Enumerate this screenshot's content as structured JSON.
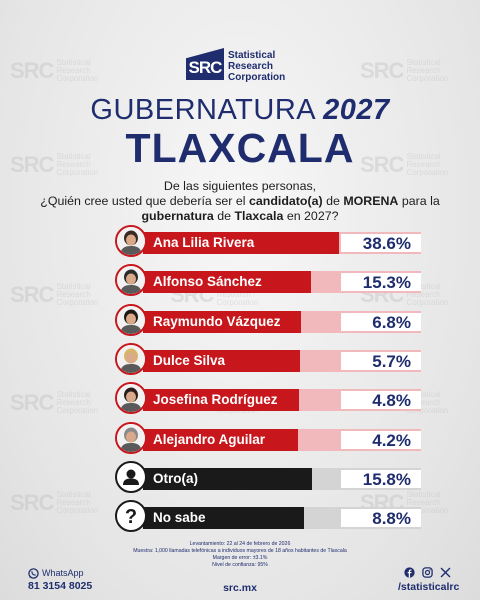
{
  "brand": {
    "logo_text": "SRC",
    "name_lines": [
      "Statistical",
      "Research",
      "Corporation"
    ],
    "navy": "#1f2d6e",
    "red": "#c7161c"
  },
  "title_lines": {
    "line1_prefix": "GUBERNATURA",
    "line1_year": "2027",
    "line2": "TLAXCALA"
  },
  "question": {
    "line1": "De las siguientes personas,",
    "line2_a": "¿Quién cree usted que debería ser el ",
    "line2_b": "candidato(a)",
    "line2_c": " de ",
    "line2_d": "MORENA",
    "line2_e": " para la",
    "line3_a": "gubernatura",
    "line3_b": " de ",
    "line3_c": "Tlaxcala",
    "line3_d": " en 2027?"
  },
  "chart_data": {
    "type": "bar",
    "orientation": "horizontal",
    "categories": [
      "Ana Lilia Rivera",
      "Alfonso Sánchez",
      "Raymundo Vázquez",
      "Dulce Silva",
      "Josefina Rodríguez",
      "Alejandro Aguilar",
      "Otro(a)",
      "No sabe"
    ],
    "values": [
      38.6,
      15.3,
      6.8,
      5.7,
      4.8,
      4.2,
      15.8,
      8.8
    ],
    "value_labels": [
      "38.6%",
      "15.3%",
      "6.8%",
      "5.7%",
      "4.8%",
      "4.2%",
      "15.8%",
      "8.8%"
    ],
    "xlim": [
      0,
      40
    ],
    "title": "",
    "xlabel": "",
    "ylabel": ""
  },
  "footer": {
    "line1": "Levantamiento: 22 al 24 de febrero de 2026",
    "line2": "Muestra: 1,000 llamadas telefónicas a individuos mayores de 18 años habitantes de Tlaxcala",
    "line3": "Margen de error: ±3.1%",
    "line4": "Nivel de confianza: 95%",
    "whatsapp_label": "WhatsApp",
    "whatsapp_number": "81 3154 8025",
    "site": "src.mx",
    "handle": "/statisticalrc"
  },
  "icons": [
    "whatsapp-icon",
    "facebook-icon",
    "instagram-icon",
    "x-icon",
    "person-icon",
    "question-icon"
  ]
}
